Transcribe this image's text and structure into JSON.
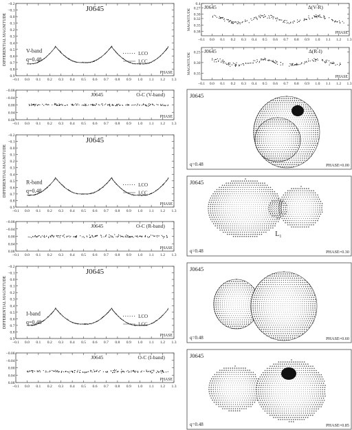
{
  "colors": {
    "ink": "#222222",
    "frame": "#444444",
    "bg": "#ffffff"
  },
  "chart_data": [
    {
      "id": "lc-v",
      "type": "line",
      "title": "J0645",
      "ylabel": "DIFFERENTIAL MAGNITUDE",
      "xlabel": "PHASE",
      "xlim": [
        -0.1,
        1.3
      ],
      "ylim": [
        -0.2,
        0.9
      ],
      "y_inverted": true,
      "x_ticks": [
        -0.1,
        0.0,
        0.1,
        0.2,
        0.3,
        0.4,
        0.5,
        0.6,
        0.7,
        0.8,
        0.9,
        1.0,
        1.1,
        1.2,
        1.3
      ],
      "y_ticks": [
        -0.2,
        -0.1,
        0.0,
        0.1,
        0.2,
        0.3,
        0.4,
        0.5,
        0.6,
        0.7,
        0.8,
        0.9
      ],
      "band_label": "V-band",
      "q_label": "q=0.48",
      "series": [
        {
          "name": "LCO",
          "style": "dots",
          "model": "eclipsing",
          "max": -0.15,
          "min_primary": 0.72,
          "min_secondary": 0.7
        },
        {
          "name": "LCC",
          "style": "line",
          "model": "eclipsing",
          "max": -0.15,
          "min_primary": 0.72,
          "min_secondary": 0.7
        }
      ]
    },
    {
      "id": "oc-v",
      "type": "scatter",
      "title": "J0645",
      "subtitle": "O-C (V-band)",
      "xlabel": "PHASE",
      "xlim": [
        -0.1,
        1.3
      ],
      "ylim": [
        -0.08,
        0.08
      ],
      "y_inverted": true,
      "x_ticks": [
        -0.1,
        0.0,
        0.1,
        0.2,
        0.3,
        0.4,
        0.5,
        0.6,
        0.7,
        0.8,
        0.9,
        1.0,
        1.1,
        1.2,
        1.3
      ],
      "y_ticks": [
        -0.08,
        -0.04,
        0.0,
        0.04,
        0.08
      ],
      "series": [
        {
          "style": "dots",
          "model": "residual",
          "mean": 0.0,
          "scatter": 0.006
        }
      ]
    },
    {
      "id": "lc-r",
      "type": "line",
      "title": "J0645",
      "ylabel": "DIFFERENTIAL MAGNITUDE",
      "xlabel": "PHASE",
      "xlim": [
        -0.1,
        1.3
      ],
      "ylim": [
        -0.2,
        0.9
      ],
      "y_inverted": true,
      "x_ticks": [
        -0.1,
        0.0,
        0.1,
        0.2,
        0.3,
        0.4,
        0.5,
        0.6,
        0.7,
        0.8,
        0.9,
        1.0,
        1.1,
        1.2,
        1.3
      ],
      "y_ticks": [
        -0.2,
        -0.1,
        0.0,
        0.1,
        0.2,
        0.3,
        0.4,
        0.5,
        0.6,
        0.7,
        0.8,
        0.9
      ],
      "band_label": "R-band",
      "q_label": "q=0.48",
      "series": [
        {
          "name": "LCO",
          "style": "dots",
          "model": "eclipsing",
          "max": -0.15,
          "min_primary": 0.72,
          "min_secondary": 0.7
        },
        {
          "name": "LCC",
          "style": "line",
          "model": "eclipsing",
          "max": -0.15,
          "min_primary": 0.72,
          "min_secondary": 0.7
        }
      ]
    },
    {
      "id": "oc-r",
      "type": "scatter",
      "title": "J0645",
      "subtitle": "O-C (R-band)",
      "xlabel": "PHASE",
      "xlim": [
        -0.1,
        1.3
      ],
      "ylim": [
        -0.08,
        0.08
      ],
      "y_inverted": true,
      "x_ticks": [
        -0.1,
        0.0,
        0.1,
        0.2,
        0.3,
        0.4,
        0.5,
        0.6,
        0.7,
        0.8,
        0.9,
        1.0,
        1.1,
        1.2,
        1.3
      ],
      "y_ticks": [
        -0.08,
        -0.04,
        0.0,
        0.04,
        0.08
      ],
      "series": [
        {
          "style": "dots",
          "model": "residual",
          "mean": 0.0,
          "scatter": 0.007
        }
      ]
    },
    {
      "id": "lc-i",
      "type": "line",
      "title": "J0645",
      "ylabel": "DIFFERENTIAL MAGNITUDE",
      "xlabel": "PHASE",
      "xlim": [
        -0.1,
        1.3
      ],
      "ylim": [
        -0.2,
        0.9
      ],
      "y_inverted": true,
      "x_ticks": [
        -0.1,
        0.0,
        0.1,
        0.2,
        0.3,
        0.4,
        0.5,
        0.6,
        0.7,
        0.8,
        0.9,
        1.0,
        1.1,
        1.2,
        1.3
      ],
      "y_ticks": [
        -0.2,
        -0.1,
        0.0,
        0.1,
        0.2,
        0.3,
        0.4,
        0.5,
        0.6,
        0.7,
        0.8,
        0.9
      ],
      "band_label": "I-band",
      "q_label": "q=0.48",
      "series": [
        {
          "name": "LCO",
          "style": "dots",
          "model": "eclipsing",
          "max": -0.15,
          "min_primary": 0.7,
          "min_secondary": 0.68
        },
        {
          "name": "LCC",
          "style": "line",
          "model": "eclipsing",
          "max": -0.15,
          "min_primary": 0.7,
          "min_secondary": 0.68
        }
      ]
    },
    {
      "id": "oc-i",
      "type": "scatter",
      "title": "J0645",
      "subtitle": "O-C (I-band)",
      "xlabel": "PHASE",
      "xlim": [
        -0.1,
        1.3
      ],
      "ylim": [
        -0.08,
        0.08
      ],
      "y_inverted": true,
      "x_ticks": [
        -0.1,
        0.0,
        0.1,
        0.2,
        0.3,
        0.4,
        0.5,
        0.6,
        0.7,
        0.8,
        0.9,
        1.0,
        1.1,
        1.2,
        1.3
      ],
      "y_ticks": [
        -0.08,
        -0.04,
        0.0,
        0.04,
        0.08
      ],
      "series": [
        {
          "style": "dots",
          "model": "residual",
          "mean": 0.02,
          "scatter": 0.008
        }
      ]
    },
    {
      "id": "col-vr",
      "type": "scatter",
      "title": "J0645",
      "subtitle": "Δ(V-R)",
      "ylabel": "MAGNITUDE",
      "xlabel": "PHASE",
      "xlim": [
        -0.1,
        1.3
      ],
      "ylim": [
        0.25,
        0.4
      ],
      "y_inverted": true,
      "x_ticks": [
        -0.1,
        0.0,
        0.1,
        0.2,
        0.3,
        0.4,
        0.5,
        0.6,
        0.7,
        0.8,
        0.9,
        1.0,
        1.1,
        1.2,
        1.3
      ],
      "y_ticks": [
        0.25,
        0.27,
        0.3,
        0.32,
        0.35,
        0.38
      ],
      "y_tick_labels": [
        "",
        "0.27",
        "0.30",
        "0.32",
        "0.35",
        "0.38"
      ],
      "extra_top_label": "0.4",
      "series": [
        {
          "style": "dots",
          "model": "color",
          "mean": 0.325,
          "amp": 0.03,
          "scatter": 0.008
        }
      ]
    },
    {
      "id": "col-ri",
      "type": "scatter",
      "title": "J0645",
      "subtitle": "Δ(R-I)",
      "ylabel": "MAGNITUDE",
      "xlabel": "PHASE",
      "xlim": [
        -0.1,
        1.3
      ],
      "ylim": [
        0.23,
        0.38
      ],
      "y_inverted": true,
      "x_ticks": [
        -0.1,
        0.0,
        0.1,
        0.2,
        0.3,
        0.4,
        0.5,
        0.6,
        0.7,
        0.8,
        0.9,
        1.0,
        1.1,
        1.2,
        1.3
      ],
      "y_ticks": [
        0.25,
        0.3,
        0.35
      ],
      "series": [
        {
          "style": "dots",
          "model": "color",
          "mean": 0.3,
          "amp": 0.025,
          "scatter": 0.009
        }
      ]
    }
  ],
  "geometry_panels": [
    {
      "id": "geo-000",
      "title": "J0645",
      "q_label": "q=0.48",
      "phase_label": "PHASE=0.00",
      "view": "phase-0.00",
      "spot": true,
      "show_l1": false
    },
    {
      "id": "geo-030",
      "title": "J0645",
      "q_label": "q=0.48",
      "phase_label": "PHASE=0.30",
      "view": "phase-0.30",
      "spot": false,
      "show_l1": true,
      "l1_label": "L₁"
    },
    {
      "id": "geo-060",
      "title": "J0645",
      "q_label": "q=0.48",
      "phase_label": "PHASE=0.60",
      "view": "phase-0.60",
      "spot": false,
      "show_l1": false
    },
    {
      "id": "geo-085",
      "title": "J0645",
      "q_label": "q=0.48",
      "phase_label": "PHASE=0.85",
      "view": "phase-0.85",
      "spot": true,
      "show_l1": false
    }
  ]
}
